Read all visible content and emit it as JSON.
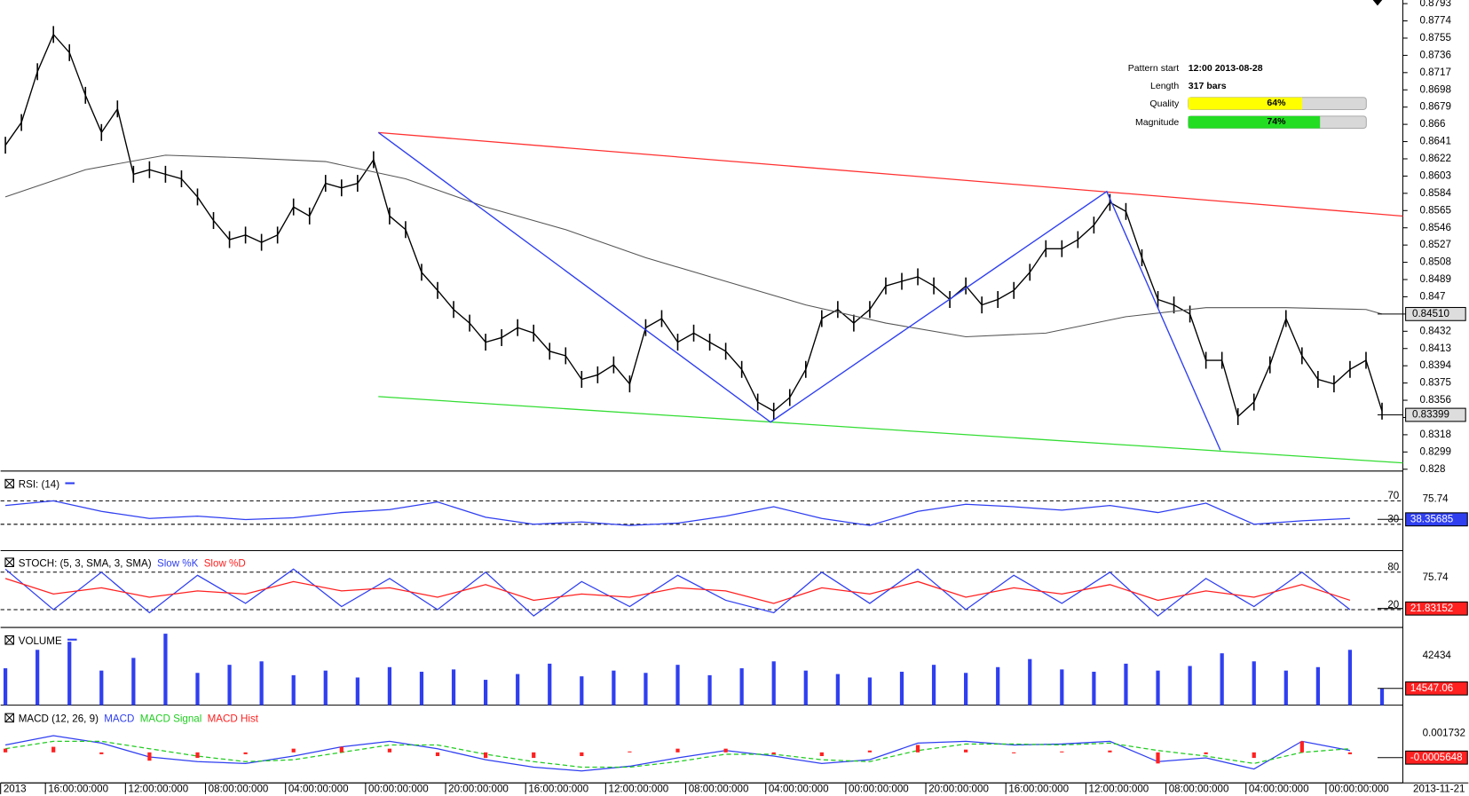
{
  "chart_data": [
    {
      "type": "price",
      "xlim": [
        -0.3,
        87.3
      ],
      "ylim": [
        0.8278,
        0.8797
      ],
      "xticks": [
        {
          "value": -0.3,
          "label": "2013"
        },
        {
          "value": 2.5,
          "label": "16:00:00:000"
        },
        {
          "value": 7.5,
          "label": "12:00:00:000"
        },
        {
          "value": 12.5,
          "label": "08:00:00:000"
        },
        {
          "value": 17.5,
          "label": "04:00:00:000"
        },
        {
          "value": 22.5,
          "label": "00:00:00:000"
        },
        {
          "value": 27.5,
          "label": "20:00:00:000"
        },
        {
          "value": 32.5,
          "label": "16:00:00:000"
        },
        {
          "value": 37.5,
          "label": "12:00:00:000"
        },
        {
          "value": 42.5,
          "label": "08:00:00:000"
        },
        {
          "value": 47.5,
          "label": "04:00:00:000"
        },
        {
          "value": 52.5,
          "label": "00:00:00:000"
        },
        {
          "value": 57.5,
          "label": "20:00:00:000"
        },
        {
          "value": 62.5,
          "label": "16:00:00:000"
        },
        {
          "value": 67.5,
          "label": "12:00:00:000"
        },
        {
          "value": 72.5,
          "label": "08:00:00:000"
        },
        {
          "value": 77.5,
          "label": "04:00:00:000"
        },
        {
          "value": 82.5,
          "label": "00:00:00:000"
        }
      ],
      "end_date": "2013-11-21",
      "yticks": [
        0.8793,
        0.8774,
        0.8755,
        0.8736,
        0.8717,
        0.8698,
        0.8679,
        0.866,
        0.8641,
        0.8622,
        0.8603,
        0.8584,
        0.8565,
        0.8546,
        0.8527,
        0.8508,
        0.8489,
        0.847,
        0.8451,
        0.8432,
        0.8413,
        0.8394,
        0.8375,
        0.8356,
        0.8337,
        0.8318,
        0.8299,
        0.828
      ],
      "color": "#000000",
      "values": [
        0.8637,
        0.8662,
        0.8718,
        0.8759,
        0.8739,
        0.8692,
        0.8651,
        0.8677,
        0.8605,
        0.861,
        0.8605,
        0.86,
        0.858,
        0.8554,
        0.8533,
        0.8538,
        0.853,
        0.8538,
        0.8569,
        0.8559,
        0.8595,
        0.859,
        0.8595,
        0.8621,
        0.8559,
        0.8544,
        0.8497,
        0.8477,
        0.8456,
        0.8441,
        0.842,
        0.8425,
        0.8436,
        0.843,
        0.841,
        0.8405,
        0.8379,
        0.8384,
        0.8395,
        0.8374,
        0.8436,
        0.8446,
        0.842,
        0.843,
        0.842,
        0.841,
        0.839,
        0.8354,
        0.8344,
        0.8359,
        0.839,
        0.8446,
        0.8456,
        0.8441,
        0.8456,
        0.8482,
        0.8487,
        0.8492,
        0.8482,
        0.8467,
        0.8482,
        0.8461,
        0.8467,
        0.8477,
        0.8497,
        0.8523,
        0.8523,
        0.8533,
        0.8549,
        0.8574,
        0.8564,
        0.8513,
        0.8467,
        0.8461,
        0.8451,
        0.84,
        0.84,
        0.8338,
        0.8354,
        0.8395,
        0.8446,
        0.8405,
        0.8379,
        0.8374,
        0.839,
        0.84,
        0.8344
      ],
      "moving_average": {
        "color": "#555555",
        "x": [
          0,
          5,
          10,
          15,
          20,
          25,
          30,
          35,
          40,
          45,
          50,
          55,
          60,
          65,
          70,
          75,
          80,
          85,
          86
        ],
        "values": [
          0.858,
          0.861,
          0.8626,
          0.8623,
          0.8619,
          0.86,
          0.8569,
          0.8544,
          0.8513,
          0.8487,
          0.8461,
          0.8441,
          0.8426,
          0.843,
          0.8448,
          0.8458,
          0.8458,
          0.8456,
          0.8451
        ]
      },
      "resistance_line": {
        "color": "#ff3030",
        "x": [
          23.3,
          87.3
        ],
        "values": [
          0.8651,
          0.8559
        ]
      },
      "support_line": {
        "color": "#33dd33",
        "x": [
          23.3,
          87.3
        ],
        "values": [
          0.836,
          0.8287
        ]
      },
      "pattern": {
        "color": "#2f3ff0",
        "x": [
          23.3,
          47.8,
          68.8,
          75.9
        ],
        "values": [
          0.8651,
          0.8332,
          0.8586,
          0.8301
        ]
      },
      "current_labels": [
        {
          "value": 0.8451,
          "label": "0.84510"
        },
        0.83399
      ],
      "info": {
        "pattern_start_label": "Pattern start",
        "pattern_start": "12:00 2013-08-28",
        "length_label": "Length",
        "length": "317 bars",
        "quality_label": "Quality",
        "quality": {
          "value": 64,
          "label": "64%"
        },
        "quality_color": "#ffff00",
        "magnitude_label": "Magnitude",
        "magnitude": {
          "value": 74,
          "label": "74%"
        },
        "magnitude_color": "#22dd22"
      }
    },
    {
      "type": "line",
      "title": "RSI: (14)",
      "ylim": [
        -15,
        116
      ],
      "yticks": [
        70,
        30
      ],
      "note": "75.74",
      "current": 38.35685,
      "x": [
        0,
        3,
        6,
        9,
        12,
        15,
        18,
        21,
        24,
        27,
        30,
        33,
        36,
        39,
        42,
        45,
        48,
        51,
        54,
        57,
        60,
        63,
        66,
        69,
        72,
        75,
        78,
        81,
        84
      ],
      "series": [
        {
          "name": "RSI",
          "color": "#2f3ff0",
          "values": [
            62,
            70,
            52,
            40,
            44,
            38,
            41,
            50,
            55,
            68,
            42,
            30,
            34,
            28,
            32,
            44,
            60,
            40,
            28,
            52,
            64,
            60,
            54,
            62,
            50,
            66,
            30,
            36,
            40
          ]
        }
      ]
    },
    {
      "type": "line",
      "title": "STOCH: (5, 3, SMA, 3, SMA)",
      "ylim": [
        -8.5,
        111.5
      ],
      "yticks": [
        80,
        20
      ],
      "note": "75.74",
      "current": 21.83152,
      "x": [
        0,
        3,
        6,
        9,
        12,
        15,
        18,
        21,
        24,
        27,
        30,
        33,
        36,
        39,
        42,
        45,
        48,
        51,
        54,
        57,
        60,
        63,
        66,
        69,
        72,
        75,
        78,
        81,
        84
      ],
      "series": [
        {
          "name": "Slow %K",
          "color": "#2f3ff0",
          "values": [
            85,
            20,
            80,
            15,
            75,
            30,
            85,
            25,
            70,
            20,
            80,
            10,
            65,
            25,
            75,
            35,
            15,
            80,
            30,
            85,
            20,
            75,
            30,
            80,
            10,
            70,
            25,
            80,
            20
          ]
        },
        {
          "name": "Slow %D",
          "color": "#ff2020",
          "values": [
            70,
            45,
            55,
            40,
            50,
            45,
            65,
            50,
            55,
            40,
            60,
            35,
            45,
            40,
            55,
            50,
            30,
            55,
            45,
            65,
            40,
            55,
            45,
            60,
            35,
            50,
            40,
            60,
            35
          ]
        }
      ]
    },
    {
      "type": "bar",
      "title": "VOLUME",
      "ylim": [
        0,
        65000
      ],
      "yticks": [],
      "note": "42434",
      "current": 14547.06,
      "x": [
        0,
        2,
        4,
        6,
        8,
        10,
        12,
        14,
        16,
        18,
        20,
        22,
        24,
        26,
        28,
        30,
        32,
        34,
        36,
        38,
        40,
        42,
        44,
        46,
        48,
        50,
        52,
        54,
        56,
        58,
        60,
        62,
        64,
        66,
        68,
        70,
        72,
        74,
        76,
        78,
        80,
        82,
        84,
        86
      ],
      "series": [
        {
          "name": "VOLUME",
          "color": "#2f3ff0",
          "values": [
            32000,
            48000,
            55000,
            30000,
            41000,
            62000,
            28000,
            35000,
            38000,
            26000,
            30000,
            24000,
            33000,
            29000,
            31000,
            22000,
            27000,
            36000,
            25000,
            30000,
            28000,
            35000,
            26000,
            32000,
            38000,
            30000,
            27000,
            24000,
            29000,
            35000,
            28000,
            33000,
            40000,
            31000,
            29000,
            36000,
            30000,
            34000,
            45000,
            38000,
            30000,
            33000,
            48000,
            14547.06
          ]
        }
      ]
    },
    {
      "type": "macd",
      "title": "MACD (12, 26, 9)",
      "ylim": [
        -0.0033,
        0.0048
      ],
      "yticks": [],
      "note": "0.001732",
      "current": -0.0005648,
      "x": [
        0,
        3,
        6,
        9,
        12,
        15,
        18,
        21,
        24,
        27,
        30,
        33,
        36,
        39,
        42,
        45,
        48,
        51,
        54,
        57,
        60,
        63,
        66,
        69,
        72,
        75,
        78,
        81,
        84
      ],
      "series": [
        {
          "name": "MACD",
          "color": "#2f3ff0",
          "values": [
            0.0008,
            0.0018,
            0.001,
            -0.0005,
            -0.001,
            -0.0012,
            -0.0004,
            0.0006,
            0.0012,
            0.0004,
            -0.0008,
            -0.0016,
            -0.002,
            -0.0015,
            -0.0006,
            0.0002,
            -0.0004,
            -0.0012,
            -0.0008,
            0.001,
            0.0012,
            0.0008,
            0.0009,
            0.0012,
            -0.001,
            -0.0006,
            -0.0018,
            0.0012,
            0.0002
          ]
        },
        {
          "name": "MACD Signal",
          "color": "#22cc22",
          "values": [
            0.0004,
            0.0012,
            0.0012,
            0.0004,
            -0.0004,
            -0.001,
            -0.0008,
            0.0,
            0.0008,
            0.0008,
            -0.0002,
            -0.001,
            -0.0016,
            -0.0016,
            -0.001,
            -0.0002,
            -0.0002,
            -0.0008,
            -0.001,
            0.0002,
            0.0009,
            0.0009,
            0.0008,
            0.001,
            0.0002,
            -0.0004,
            -0.0012,
            0.0,
            0.0004
          ]
        },
        {
          "name": "MACD Hist",
          "color": "#ff2020",
          "values": [
            0.0004,
            0.0006,
            -0.0002,
            -0.0009,
            -0.0006,
            -0.0002,
            0.0004,
            0.0006,
            0.0004,
            -0.0004,
            -0.0006,
            -0.0006,
            -0.0004,
            0.0001,
            0.0004,
            0.0004,
            -0.0002,
            -0.0004,
            0.0002,
            0.0008,
            0.0003,
            -0.0001,
            0.0001,
            0.0002,
            -0.0012,
            -0.0002,
            -0.0006,
            0.0012,
            -0.0002
          ]
        }
      ]
    }
  ]
}
